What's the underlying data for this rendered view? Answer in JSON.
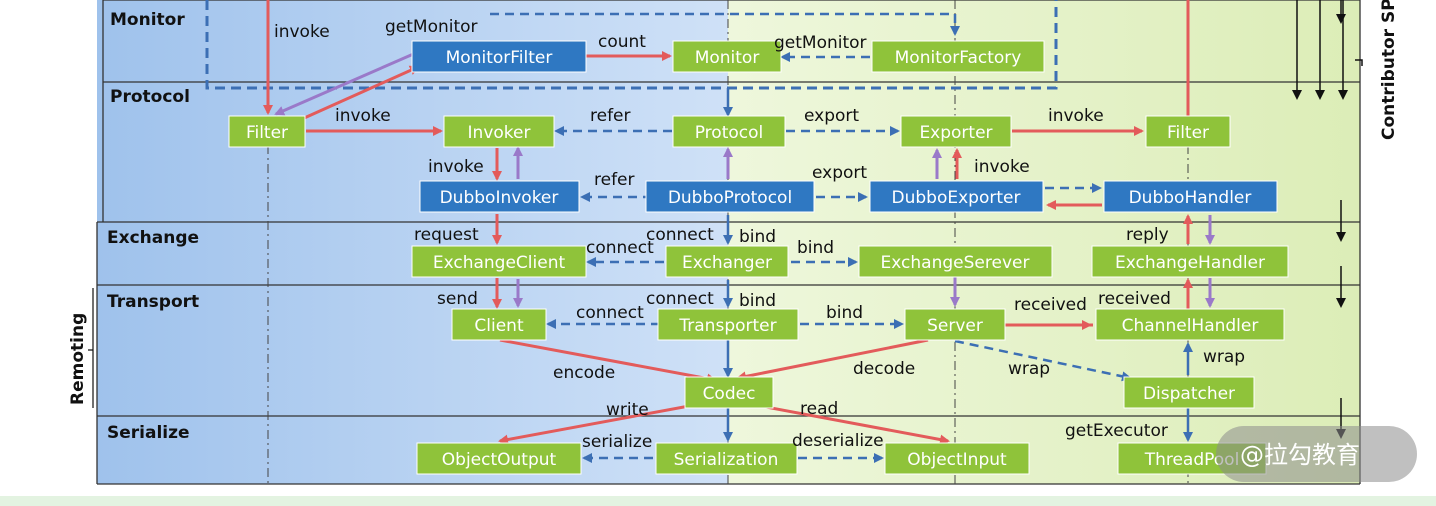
{
  "layers": [
    "Monitor",
    "Protocol",
    "Exchange",
    "Transport",
    "Serialize"
  ],
  "side_labels": {
    "left": "Remoting",
    "right": "Contributor SPI"
  },
  "boxes": {
    "monitor_filter": "MonitorFilter",
    "monitor": "Monitor",
    "monitor_factory": "MonitorFactory",
    "filter_left": "Filter",
    "invoker": "Invoker",
    "protocol": "Protocol",
    "exporter": "Exporter",
    "filter_right": "Filter",
    "dubbo_invoker": "DubboInvoker",
    "dubbo_protocol": "DubboProtocol",
    "dubbo_exporter": "DubboExporter",
    "dubbo_handler": "DubboHandler",
    "exchange_client": "ExchangeClient",
    "exchanger": "Exchanger",
    "exchange_serever": "ExchangeSerever",
    "exchange_handler": "ExchangeHandler",
    "client": "Client",
    "transporter": "Transporter",
    "server": "Server",
    "channel_handler": "ChannelHandler",
    "codec": "Codec",
    "dispatcher": "Dispatcher",
    "object_output": "ObjectOutput",
    "serialization": "Serialization",
    "object_input": "ObjectInput",
    "thread_pool": "ThreadPool"
  },
  "edge_labels": {
    "invoke_monitor": "invoke",
    "get_monitor_1": "getMonitor",
    "count": "count",
    "get_monitor_2": "getMonitor",
    "invoke_filter": "invoke",
    "refer_protocol": "refer",
    "export_protocol": "export",
    "invoke_exporter": "invoke",
    "invoke_invoker": "invoke",
    "refer_dubbo": "refer",
    "export_dubbo": "export",
    "invoke_dubbo_exporter": "invoke",
    "request": "request",
    "connect_exchange": "connect",
    "connect_exchanger": "connect",
    "bind_exchanger": "bind",
    "bind_exchange": "bind",
    "reply": "reply",
    "send": "send",
    "connect_transport": "connect",
    "connect_transporter": "connect",
    "bind_transporter": "bind",
    "bind_transport": "bind",
    "received_1": "received",
    "received_2": "received",
    "encode": "encode",
    "decode": "decode",
    "wrap_server": "wrap",
    "wrap_dispatcher": "wrap",
    "write": "write",
    "read": "read",
    "serialize": "serialize",
    "deserialize": "deserialize",
    "get_executor": "getExecutor"
  },
  "watermark": "@拉勾教育",
  "colors": {
    "blue_box": "#2f78c2",
    "green_box": "#8fc33a",
    "red_arrow": "#e35b5b",
    "purple_arrow": "#9a79c9",
    "blue_dash": "#3c6fb4",
    "bg_blue": "#bcd6f3",
    "bg_green": "#e5f3c9",
    "bottom_bar": "#e3f3e1"
  }
}
